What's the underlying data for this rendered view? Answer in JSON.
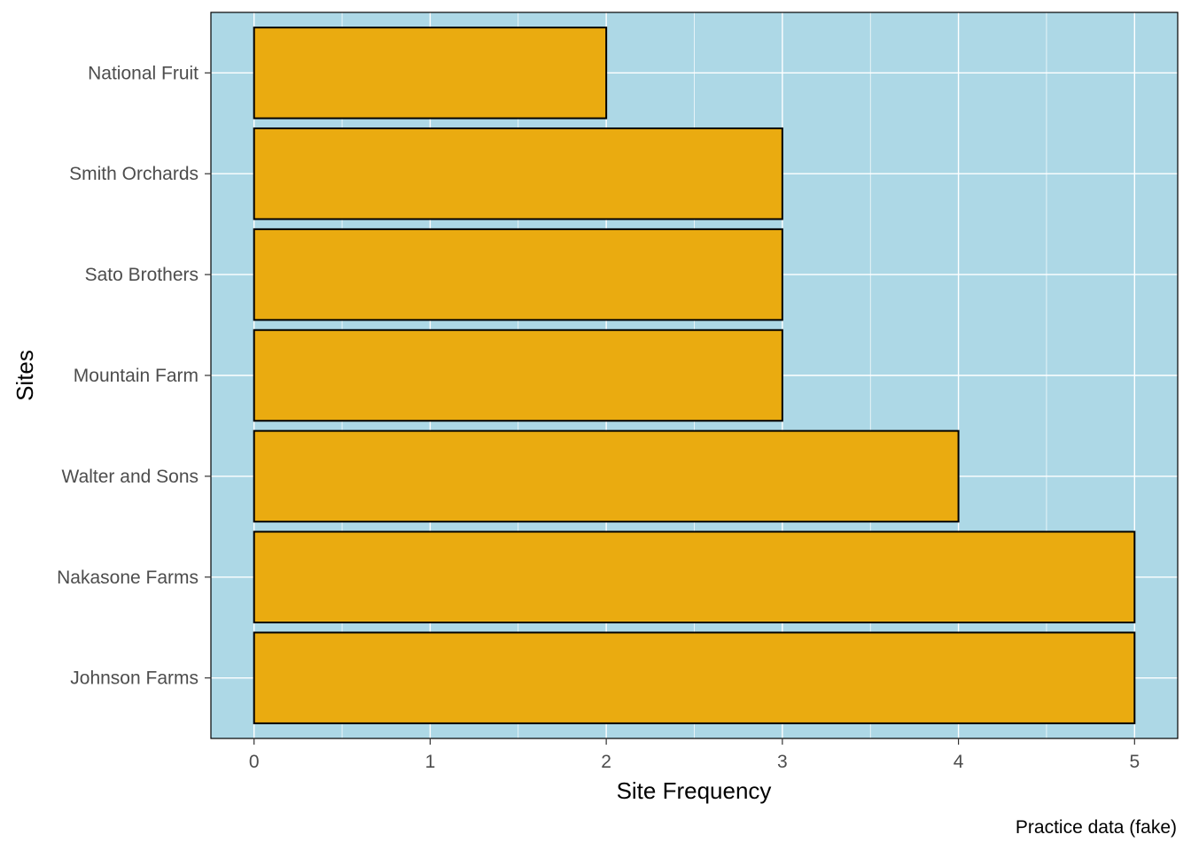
{
  "chart_data": {
    "type": "bar",
    "orientation": "horizontal",
    "categories": [
      "Johnson Farms",
      "Nakasone Farms",
      "Walter and Sons",
      "Mountain Farm",
      "Sato Brothers",
      "Smith Orchards",
      "National Fruit"
    ],
    "values": [
      5,
      5,
      4,
      3,
      3,
      3,
      2
    ],
    "xlabel": "Site Frequency",
    "ylabel": "Sites",
    "caption": "Practice data (fake)",
    "xlim": [
      -0.245,
      5.245
    ],
    "xticks": [
      0,
      1,
      2,
      3,
      4,
      5
    ],
    "grid": true,
    "legend": "none",
    "colors": {
      "panel_background": "#add8e6",
      "bar_fill": "#eaab10",
      "bar_outline": "#000000",
      "grid": "#ffffff"
    }
  }
}
